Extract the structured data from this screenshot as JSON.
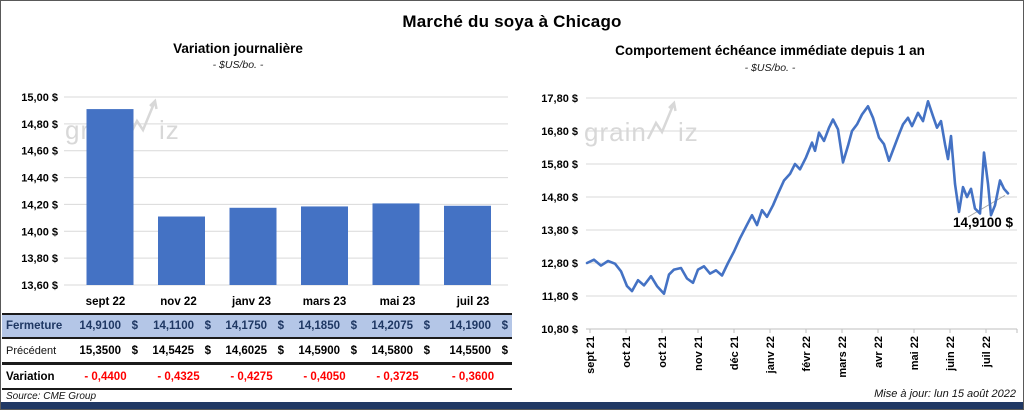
{
  "title": "Marché du soya à Chicago",
  "watermark": {
    "part1": "grain",
    "part2": "iz",
    "color": "#D8D8D8"
  },
  "colors": {
    "accent_blue": "#4472C4",
    "fermeture_bg": "#B4C6E7",
    "fermeture_text": "#1F3864",
    "variation_red": "#FF0000",
    "gridline": "#D9D9D9",
    "axis": "#BFBFBF",
    "navy_bar": "#203864"
  },
  "chart_data": [
    {
      "type": "bar",
      "title": "Variation  journalière",
      "subtitle": "- $US/bo. -",
      "categories": [
        "sept 22",
        "nov 22",
        "janv 23",
        "mars 23",
        "mai 23",
        "juil 23"
      ],
      "values": [
        14.91,
        14.11,
        14.175,
        14.185,
        14.2075,
        14.19
      ],
      "ylim": [
        13.6,
        15.0
      ],
      "ytick_step": 0.2,
      "ytick_suffix": " $",
      "grid": true,
      "bar_color": "#4472C4"
    },
    {
      "type": "line",
      "title": "Comportement  échéance immédiate depuis 1 an",
      "subtitle": "- $US/bo. -",
      "x_labels": [
        "sept 21",
        "oct 21",
        "oct 21",
        "nov 21",
        "déc 21",
        "janv 22",
        "févr 22",
        "mars 22",
        "avr 22",
        "mai 22",
        "juin 22",
        "juil 22"
      ],
      "ylim": [
        10.8,
        17.8
      ],
      "ytick_step": 1.0,
      "ytick_suffix": " $",
      "grid": true,
      "line_color": "#4472C4",
      "end_label": "14,9100 $",
      "end_value": 14.91,
      "points": [
        [
          586,
          12.8
        ],
        [
          593,
          12.9
        ],
        [
          600,
          12.72
        ],
        [
          607,
          12.86
        ],
        [
          614,
          12.78
        ],
        [
          620,
          12.55
        ],
        [
          626,
          12.1
        ],
        [
          631,
          11.95
        ],
        [
          637,
          12.28
        ],
        [
          643,
          12.12
        ],
        [
          650,
          12.4
        ],
        [
          656,
          12.1
        ],
        [
          663,
          11.87
        ],
        [
          668,
          12.45
        ],
        [
          673,
          12.6
        ],
        [
          680,
          12.65
        ],
        [
          686,
          12.33
        ],
        [
          692,
          12.2
        ],
        [
          697,
          12.6
        ],
        [
          703,
          12.7
        ],
        [
          709,
          12.48
        ],
        [
          715,
          12.58
        ],
        [
          721,
          12.42
        ],
        [
          727,
          12.8
        ],
        [
          733,
          13.15
        ],
        [
          739,
          13.55
        ],
        [
          745,
          13.9
        ],
        [
          751,
          14.25
        ],
        [
          756,
          13.95
        ],
        [
          761,
          14.4
        ],
        [
          766,
          14.2
        ],
        [
          772,
          14.55
        ],
        [
          777,
          14.9
        ],
        [
          783,
          15.3
        ],
        [
          789,
          15.5
        ],
        [
          794,
          15.8
        ],
        [
          799,
          15.64
        ],
        [
          805,
          16.0
        ],
        [
          811,
          16.45
        ],
        [
          814,
          16.2
        ],
        [
          818,
          16.75
        ],
        [
          823,
          16.5
        ],
        [
          828,
          16.9
        ],
        [
          832,
          17.15
        ],
        [
          837,
          16.85
        ],
        [
          842,
          15.85
        ],
        [
          847,
          16.35
        ],
        [
          851,
          16.8
        ],
        [
          856,
          17.0
        ],
        [
          861,
          17.3
        ],
        [
          867,
          17.55
        ],
        [
          872,
          17.2
        ],
        [
          878,
          16.6
        ],
        [
          883,
          16.4
        ],
        [
          888,
          15.9
        ],
        [
          893,
          16.3
        ],
        [
          898,
          16.7
        ],
        [
          902,
          17.0
        ],
        [
          907,
          17.2
        ],
        [
          911,
          16.95
        ],
        [
          917,
          17.35
        ],
        [
          922,
          17.1
        ],
        [
          927,
          17.7
        ],
        [
          932,
          17.25
        ],
        [
          936,
          16.9
        ],
        [
          940,
          17.1
        ],
        [
          944,
          16.4
        ],
        [
          947,
          15.95
        ],
        [
          950,
          16.65
        ],
        [
          954,
          15.2
        ],
        [
          958,
          14.35
        ],
        [
          962,
          15.1
        ],
        [
          966,
          14.8
        ],
        [
          970,
          15.05
        ],
        [
          974,
          14.45
        ],
        [
          979,
          14.3
        ],
        [
          983,
          16.15
        ],
        [
          987,
          15.2
        ],
        [
          990,
          14.25
        ],
        [
          994,
          14.55
        ],
        [
          999,
          15.3
        ],
        [
          1003,
          15.05
        ],
        [
          1007,
          14.91
        ]
      ]
    }
  ],
  "table": {
    "header": [
      "sept 22",
      "nov 22",
      "janv 23",
      "mars 23",
      "mai 23",
      "juil 23"
    ],
    "rows": [
      {
        "label": "Fermeture",
        "style": "fermeture",
        "currency": "$",
        "values": [
          "14,9100",
          "14,1100",
          "14,1750",
          "14,1850",
          "14,2075",
          "14,1900"
        ]
      },
      {
        "label": "Précédent",
        "style": "precedent",
        "currency": "$",
        "values": [
          "15,3500",
          "14,5425",
          "14,6025",
          "14,5900",
          "14,5800",
          "14,5500"
        ]
      },
      {
        "label": "Variation",
        "style": "variation",
        "values": [
          "- 0,4400",
          "- 0,4325",
          "- 0,4275",
          "- 0,4050",
          "- 0,3725",
          "- 0,3600"
        ]
      }
    ]
  },
  "footer": {
    "source": "Source: CME Group",
    "updated": "Mise à jour: lun 15 août 2022"
  }
}
